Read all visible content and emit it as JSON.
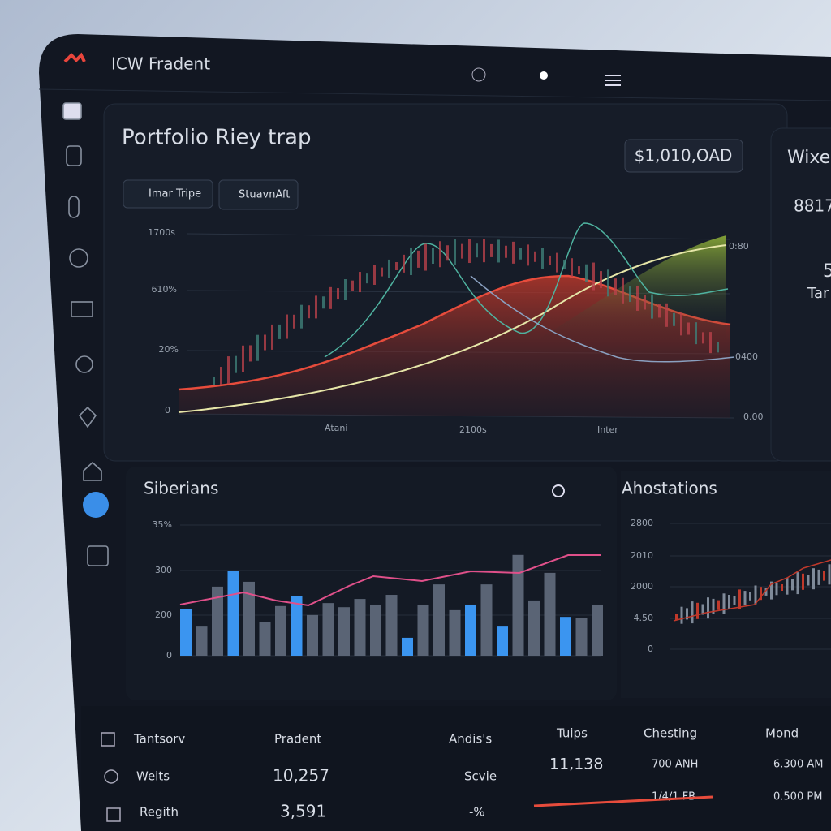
{
  "header": {
    "brand": "ICW Fradent"
  },
  "portfolio": {
    "title": "Portfolio Riey trap",
    "total": "$1,010,OAD",
    "tabs": [
      "Imar Tripe",
      "StuavnAft"
    ],
    "y_labels": [
      "1700s",
      "610%",
      "20%",
      "0"
    ],
    "right_labels": [
      "0:80",
      "0400",
      "0.00"
    ],
    "x_labels": [
      "Atani",
      "2100s",
      "Inter"
    ]
  },
  "side_card": {
    "title": "Wixe",
    "value": "8817",
    "number": "5",
    "label": "Tar"
  },
  "siberians": {
    "title": "Siberians",
    "y_labels": [
      "35%",
      "300",
      "200",
      "0"
    ],
    "ylim": [
      0,
      350
    ],
    "bars": [
      {
        "value": 126,
        "highlight": true
      },
      {
        "value": 78,
        "highlight": false
      },
      {
        "value": 185,
        "highlight": false
      },
      {
        "value": 228,
        "highlight": true
      },
      {
        "value": 198,
        "highlight": false
      },
      {
        "value": 91,
        "highlight": false
      },
      {
        "value": 133,
        "highlight": false
      },
      {
        "value": 159,
        "highlight": true
      },
      {
        "value": 109,
        "highlight": false
      },
      {
        "value": 141,
        "highlight": false
      },
      {
        "value": 130,
        "highlight": false
      },
      {
        "value": 152,
        "highlight": false
      },
      {
        "value": 137,
        "highlight": false
      },
      {
        "value": 163,
        "highlight": false
      },
      {
        "value": 48,
        "highlight": true
      },
      {
        "value": 137,
        "highlight": false
      },
      {
        "value": 191,
        "highlight": false
      },
      {
        "value": 122,
        "highlight": false
      },
      {
        "value": 137,
        "highlight": true
      },
      {
        "value": 191,
        "highlight": false
      },
      {
        "value": 78,
        "highlight": true
      },
      {
        "value": 270,
        "highlight": false
      },
      {
        "value": 148,
        "highlight": false
      },
      {
        "value": 222,
        "highlight": false
      },
      {
        "value": 104,
        "highlight": true
      },
      {
        "value": 100,
        "highlight": false
      },
      {
        "value": 137,
        "highlight": false
      }
    ]
  },
  "ahostations": {
    "title": "Ahostations",
    "y_labels": [
      "2800",
      "2010",
      "2000",
      "4.50",
      "0"
    ]
  },
  "table": {
    "headers": [
      "Tantsorv",
      "Pradent",
      "Andis's"
    ],
    "rows": [
      [
        "Weits",
        "10,257",
        "Scvie"
      ],
      [
        "Regith",
        "3,591",
        "-%"
      ]
    ]
  },
  "stats": {
    "columns": [
      {
        "header": "Tuips",
        "values": [
          "11,138"
        ]
      },
      {
        "header": "Chesting",
        "values": [
          "700 ANH",
          "1/4/1 FB"
        ]
      },
      {
        "header": "Mond",
        "values": [
          "6.300 AM",
          "0.500 PM"
        ]
      }
    ]
  }
}
